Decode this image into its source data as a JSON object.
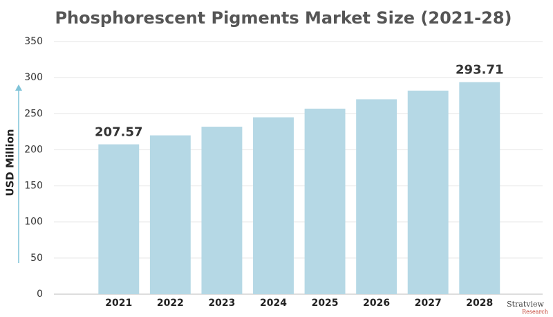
{
  "chart_data": {
    "type": "bar",
    "title": "Phosphorescent Pigments Market Size (2021-28)",
    "y_label": "USD Million",
    "categories": [
      "2021",
      "2022",
      "2023",
      "2024",
      "2025",
      "2026",
      "2027",
      "2028"
    ],
    "values": [
      207.57,
      220,
      232,
      245,
      257,
      270,
      282,
      293.71
    ],
    "color": "#b5d8e5",
    "ylim": [
      0,
      350
    ],
    "yticks": [
      0,
      50,
      100,
      150,
      200,
      250,
      300,
      350
    ],
    "grid": true,
    "logo": {
      "name": "Stratview",
      "sub": "Research"
    }
  }
}
